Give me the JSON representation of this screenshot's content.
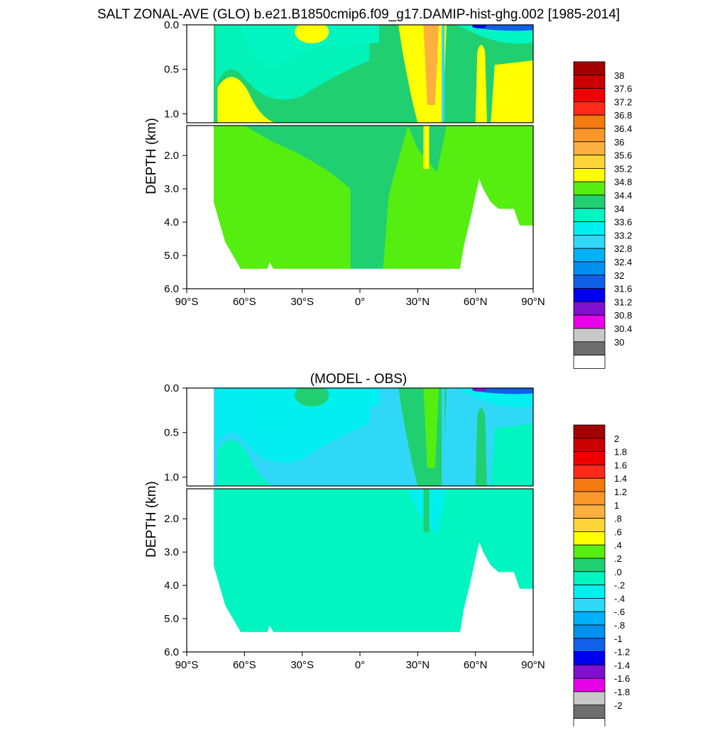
{
  "figure_title": "SALT ZONAL-AVE (GLO) b.e21.B1850cmip6.f09_g17.DAMIP-hist-ghg.002 [1985-2014]",
  "colors": {
    "page_background": "#ffffff",
    "land": "#ffffff",
    "axis": "#000000"
  },
  "chart_data": [
    {
      "type": "heatmap",
      "title": "",
      "variable": "salinity zonal average",
      "xlabel": "",
      "ylabel": "DEPTH (km)",
      "x_ticks": [
        "90°S",
        "60°S",
        "30°S",
        "0°",
        "30°N",
        "60°N",
        "90°N"
      ],
      "x_tick_values": [
        -90,
        -60,
        -30,
        0,
        30,
        60,
        90
      ],
      "xlim": [
        -90,
        90
      ],
      "y_ticks_upper": [
        "0.0",
        "0.5",
        "1.0"
      ],
      "y_ticks_lower": [
        "2.0",
        "3.0",
        "4.0",
        "5.0",
        "6.0"
      ],
      "ylim": [
        6.0,
        0.0
      ],
      "upper_panel_depth_range": [
        0.0,
        1.1
      ],
      "lower_panel_depth_range": [
        1.1,
        6.0
      ],
      "colorbar": {
        "labels": [
          "38",
          "37.6",
          "37.2",
          "36.8",
          "36.4",
          "36",
          "35.6",
          "35.2",
          "34.8",
          "34.4",
          "34",
          "33.6",
          "33.2",
          "32.8",
          "32.4",
          "32",
          "31.6",
          "31.2",
          "30.8",
          "30.4",
          "30"
        ],
        "colors": [
          "#a50000",
          "#cc0000",
          "#ee0000",
          "#ff2a1a",
          "#f27a10",
          "#fb9628",
          "#fdb040",
          "#ffd438",
          "#ffff00",
          "#55ee10",
          "#20d070",
          "#00f5c0",
          "#00f0f0",
          "#30d8f8",
          "#00b0f8",
          "#0090f0",
          "#1060e8",
          "#0000f0",
          "#8010d0",
          "#e800e8",
          "#c8c8c8",
          "#6e6e6e",
          "#ffffff"
        ]
      },
      "regions": [
        {
          "value_class": "34.8",
          "description": "deep ocean body"
        },
        {
          "value_class": "34.4",
          "description": "intermediate water tongue and equatorial column"
        },
        {
          "value_class": "34",
          "description": "Southern Ocean surface"
        },
        {
          "value_class": "35.2",
          "description": "subtropical maxima near 35S and 30N"
        },
        {
          "value_class": "36",
          "description": "subtropical North Atlantic surface core"
        },
        {
          "value_class": "31.6",
          "description": "Arctic surface minimum"
        }
      ]
    },
    {
      "type": "heatmap",
      "title": "(MODEL - OBS)",
      "variable": "salinity difference",
      "xlabel": "",
      "ylabel": "DEPTH (km)",
      "x_ticks": [
        "90°S",
        "60°S",
        "30°S",
        "0°",
        "30°N",
        "60°N",
        "90°N"
      ],
      "x_tick_values": [
        -90,
        -60,
        -30,
        0,
        30,
        60,
        90
      ],
      "xlim": [
        -90,
        90
      ],
      "y_ticks_upper": [
        "0.0",
        "0.5",
        "1.0"
      ],
      "y_ticks_lower": [
        "2.0",
        "3.0",
        "4.0",
        "5.0",
        "6.0"
      ],
      "ylim": [
        6.0,
        0.0
      ],
      "upper_panel_depth_range": [
        0.0,
        1.1
      ],
      "lower_panel_depth_range": [
        1.1,
        6.0
      ],
      "colorbar": {
        "labels": [
          "2",
          "1.8",
          "1.6",
          "1.4",
          "1.2",
          "1",
          ".8",
          ".6",
          ".4",
          ".2",
          ".0",
          "-.2",
          "-.4",
          "-.6",
          "-.8",
          "-1",
          "-1.2",
          "-1.4",
          "-1.6",
          "-1.8",
          "-2"
        ],
        "colors": [
          "#a50000",
          "#cc0000",
          "#ee0000",
          "#ff2a1a",
          "#f27a10",
          "#fb9628",
          "#fdb040",
          "#ffd438",
          "#ffff00",
          "#55ee10",
          "#20d070",
          "#00f5c0",
          "#00f0f0",
          "#30d8f8",
          "#00b0f8",
          "#0090f0",
          "#1060e8",
          "#0000f0",
          "#8010d0",
          "#e800e8",
          "#c8c8c8",
          "#6e6e6e",
          "#ffffff"
        ]
      },
      "regions": [
        {
          "value_class": ".0",
          "description": "deep ocean body (0 to .2)"
        },
        {
          "value_class": "-.4",
          "description": "Southern Ocean / tropical upper 1 km"
        },
        {
          "value_class": "-.2",
          "description": "thermocline band"
        },
        {
          "value_class": ".2",
          "description": "columns near 30N and 60N"
        },
        {
          "value_class": ".4",
          "description": "core near 35N"
        },
        {
          "value_class": "-1.4",
          "description": "Arctic surface minimum"
        }
      ]
    }
  ]
}
